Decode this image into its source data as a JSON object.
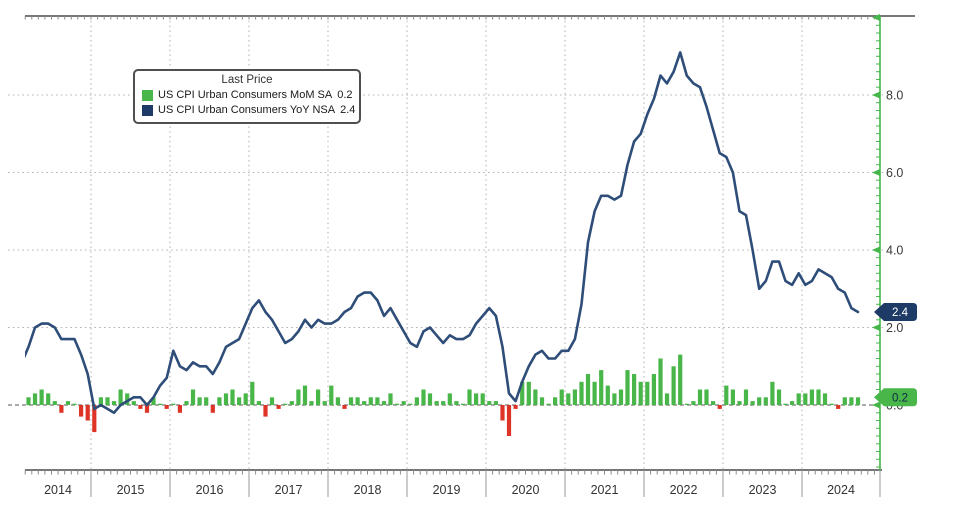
{
  "chart": {
    "legend": {
      "title": "Last Price",
      "series": [
        {
          "name": "US CPI Urban Consumers MoM SA",
          "value": "0.2"
        },
        {
          "name": "US CPI Urban Consumers YoY NSA",
          "value": "2.4"
        }
      ]
    },
    "badges": [
      {
        "text": "2.4",
        "value": 2.4,
        "bg": "#1e3a66",
        "fg": "#ffffff"
      },
      {
        "text": "0.2",
        "value": 0.2,
        "bg": "#49b649",
        "fg": "#10274a"
      }
    ],
    "colors": {
      "mom_positive": "#49b649",
      "mom_negative": "#dd3427",
      "yoy_line": "#2e4d78",
      "axis_green": "#45b649",
      "axis_dark": "#4a4a4a",
      "grid": "#b4b4b4",
      "zero_line": "#777777",
      "tick_label": "#3a3a3a",
      "year_label": "#333333"
    }
  },
  "chart_data": {
    "type": "combo-bar-line",
    "title": "",
    "legend_position": "top-left-inset",
    "grid": "dotted",
    "ylim": [
      -1.7,
      10.05
    ],
    "y_axis": {
      "side": "right",
      "ticks": [
        {
          "value": 8,
          "label": "8.0"
        },
        {
          "value": 6,
          "label": "6.0"
        },
        {
          "value": 4,
          "label": "4.0"
        },
        {
          "value": 2,
          "label": "2.0"
        },
        {
          "value": 0,
          "label": "0.0"
        }
      ]
    },
    "x_axis": {
      "years": [
        2014,
        2015,
        2016,
        2017,
        2018,
        2019,
        2020,
        2021,
        2022,
        2023,
        2024
      ]
    },
    "categories": [
      "2014-01",
      "2014-02",
      "2014-03",
      "2014-04",
      "2014-05",
      "2014-06",
      "2014-07",
      "2014-08",
      "2014-09",
      "2014-10",
      "2014-11",
      "2014-12",
      "2015-01",
      "2015-02",
      "2015-03",
      "2015-04",
      "2015-05",
      "2015-06",
      "2015-07",
      "2015-08",
      "2015-09",
      "2015-10",
      "2015-11",
      "2015-12",
      "2016-01",
      "2016-02",
      "2016-03",
      "2016-04",
      "2016-05",
      "2016-06",
      "2016-07",
      "2016-08",
      "2016-09",
      "2016-10",
      "2016-11",
      "2016-12",
      "2017-01",
      "2017-02",
      "2017-03",
      "2017-04",
      "2017-05",
      "2017-06",
      "2017-07",
      "2017-08",
      "2017-09",
      "2017-10",
      "2017-11",
      "2017-12",
      "2018-01",
      "2018-02",
      "2018-03",
      "2018-04",
      "2018-05",
      "2018-06",
      "2018-07",
      "2018-08",
      "2018-09",
      "2018-10",
      "2018-11",
      "2018-12",
      "2019-01",
      "2019-02",
      "2019-03",
      "2019-04",
      "2019-05",
      "2019-06",
      "2019-07",
      "2019-08",
      "2019-09",
      "2019-10",
      "2019-11",
      "2019-12",
      "2020-01",
      "2020-02",
      "2020-03",
      "2020-04",
      "2020-05",
      "2020-06",
      "2020-07",
      "2020-08",
      "2020-09",
      "2020-10",
      "2020-11",
      "2020-12",
      "2021-01",
      "2021-02",
      "2021-03",
      "2021-04",
      "2021-05",
      "2021-06",
      "2021-07",
      "2021-08",
      "2021-09",
      "2021-10",
      "2021-11",
      "2021-12",
      "2022-01",
      "2022-02",
      "2022-03",
      "2022-04",
      "2022-05",
      "2022-06",
      "2022-07",
      "2022-08",
      "2022-09",
      "2022-10",
      "2022-11",
      "2022-12",
      "2023-01",
      "2023-02",
      "2023-03",
      "2023-04",
      "2023-05",
      "2023-06",
      "2023-07",
      "2023-08",
      "2023-09",
      "2023-10",
      "2023-11",
      "2023-12",
      "2024-01",
      "2024-02",
      "2024-03",
      "2024-04",
      "2024-05",
      "2024-06",
      "2024-07",
      "2024-08",
      "2024-09"
    ],
    "series": [
      {
        "name": "US CPI Urban Consumers MoM SA",
        "type": "bar",
        "last": 0.2,
        "values": [
          0.1,
          0.1,
          0.2,
          0.3,
          0.4,
          0.3,
          0.1,
          -0.2,
          0.1,
          0.0,
          -0.3,
          -0.4,
          -0.7,
          0.2,
          0.2,
          0.1,
          0.4,
          0.3,
          0.1,
          -0.1,
          -0.2,
          0.2,
          0.0,
          -0.1,
          0.0,
          -0.2,
          0.1,
          0.4,
          0.2,
          0.2,
          -0.2,
          0.2,
          0.3,
          0.4,
          0.2,
          0.3,
          0.6,
          0.1,
          -0.3,
          0.2,
          -0.1,
          0.0,
          0.1,
          0.4,
          0.5,
          0.1,
          0.4,
          0.1,
          0.5,
          0.2,
          -0.1,
          0.2,
          0.2,
          0.1,
          0.2,
          0.2,
          0.1,
          0.3,
          0.0,
          0.1,
          0.0,
          0.2,
          0.4,
          0.3,
          0.1,
          0.1,
          0.3,
          0.1,
          0.0,
          0.4,
          0.3,
          0.3,
          0.1,
          0.1,
          -0.4,
          -0.8,
          -0.1,
          0.6,
          0.6,
          0.4,
          0.2,
          0.0,
          0.2,
          0.4,
          0.3,
          0.4,
          0.6,
          0.8,
          0.6,
          0.9,
          0.5,
          0.3,
          0.4,
          0.9,
          0.8,
          0.6,
          0.6,
          0.8,
          1.2,
          0.3,
          1.0,
          1.3,
          0.0,
          0.1,
          0.4,
          0.4,
          0.1,
          -0.1,
          0.5,
          0.4,
          0.1,
          0.4,
          0.1,
          0.2,
          0.2,
          0.6,
          0.4,
          0.0,
          0.1,
          0.3,
          0.3,
          0.4,
          0.4,
          0.3,
          0.0,
          -0.1,
          0.2,
          0.2,
          0.2
        ]
      },
      {
        "name": "US CPI Urban Consumers YoY NSA",
        "type": "line",
        "last": 2.4,
        "values": [
          1.6,
          1.1,
          1.5,
          2.0,
          2.1,
          2.1,
          2.0,
          1.7,
          1.7,
          1.7,
          1.3,
          0.8,
          -0.1,
          0.0,
          -0.1,
          -0.2,
          0.0,
          0.1,
          0.2,
          0.2,
          0.0,
          0.2,
          0.5,
          0.7,
          1.4,
          1.0,
          0.9,
          1.1,
          1.0,
          1.0,
          0.8,
          1.1,
          1.5,
          1.6,
          1.7,
          2.1,
          2.5,
          2.7,
          2.4,
          2.2,
          1.9,
          1.6,
          1.7,
          1.9,
          2.2,
          2.0,
          2.2,
          2.1,
          2.1,
          2.2,
          2.4,
          2.5,
          2.8,
          2.9,
          2.9,
          2.7,
          2.3,
          2.5,
          2.2,
          1.9,
          1.6,
          1.5,
          1.9,
          2.0,
          1.8,
          1.6,
          1.8,
          1.7,
          1.7,
          1.8,
          2.1,
          2.3,
          2.5,
          2.3,
          1.5,
          0.3,
          0.1,
          0.6,
          1.0,
          1.3,
          1.4,
          1.2,
          1.2,
          1.4,
          1.4,
          1.7,
          2.6,
          4.2,
          5.0,
          5.4,
          5.4,
          5.3,
          5.4,
          6.2,
          6.8,
          7.0,
          7.5,
          7.9,
          8.5,
          8.3,
          8.6,
          9.1,
          8.5,
          8.3,
          8.2,
          7.7,
          7.1,
          6.5,
          6.4,
          6.0,
          5.0,
          4.9,
          4.0,
          3.0,
          3.2,
          3.7,
          3.7,
          3.2,
          3.1,
          3.4,
          3.1,
          3.2,
          3.5,
          3.4,
          3.3,
          3.0,
          2.9,
          2.5,
          2.4
        ]
      }
    ]
  }
}
